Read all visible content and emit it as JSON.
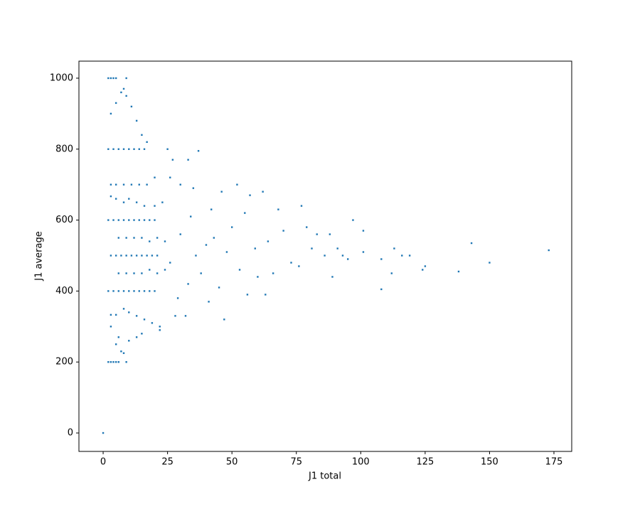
{
  "chart_data": {
    "type": "scatter",
    "xlabel": "J1 total",
    "ylabel": "J1 average",
    "color": "#1f77b4",
    "x": [
      0,
      2,
      3,
      4,
      5,
      6,
      9,
      2,
      4,
      6,
      8,
      10,
      12,
      14,
      16,
      18,
      20,
      2,
      4,
      6,
      8,
      10,
      12,
      14,
      16,
      18,
      20,
      2,
      4,
      6,
      8,
      10,
      12,
      14,
      16,
      2,
      3,
      4,
      5,
      9,
      3,
      5,
      7,
      8,
      6,
      10,
      13,
      15,
      3,
      5,
      7,
      8,
      9,
      11,
      13,
      15,
      17,
      3,
      5,
      7,
      9,
      11,
      13,
      15,
      17,
      19,
      21,
      3,
      5,
      8,
      11,
      14,
      17,
      20,
      3,
      5,
      8,
      10,
      13,
      16,
      19,
      22,
      22,
      3,
      5,
      8,
      10,
      13,
      16,
      20,
      23,
      6,
      9,
      12,
      15,
      18,
      21,
      24,
      6,
      9,
      12,
      15,
      18,
      21,
      24,
      25,
      27,
      33,
      37,
      26,
      30,
      35,
      28,
      32,
      29,
      33,
      26,
      30,
      34,
      36,
      38,
      40,
      41,
      42,
      43,
      45,
      46,
      47,
      48,
      50,
      52,
      53,
      55,
      56,
      57,
      59,
      60,
      62,
      63,
      64,
      66,
      68,
      70,
      73,
      76,
      77,
      79,
      81,
      83,
      86,
      88,
      89,
      91,
      93,
      95,
      97,
      101,
      101,
      108,
      108,
      112,
      113,
      116,
      119,
      124,
      125,
      138,
      143,
      150,
      173
    ],
    "values": [
      0,
      200,
      200,
      200,
      200,
      200,
      200,
      400,
      400,
      400,
      400,
      400,
      400,
      400,
      400,
      400,
      400,
      600,
      600,
      600,
      600,
      600,
      600,
      600,
      600,
      600,
      600,
      800,
      800,
      800,
      800,
      800,
      800,
      800,
      800,
      1000,
      1000,
      1000,
      1000,
      1000,
      300,
      250,
      230,
      225,
      270,
      260,
      270,
      280,
      900,
      930,
      960,
      970,
      950,
      920,
      880,
      840,
      820,
      500,
      500,
      500,
      500,
      500,
      500,
      500,
      500,
      500,
      500,
      700,
      700,
      700,
      700,
      700,
      700,
      720,
      333,
      333,
      350,
      340,
      330,
      320,
      310,
      300,
      290,
      667,
      660,
      650,
      660,
      650,
      640,
      640,
      650,
      450,
      450,
      450,
      450,
      460,
      450,
      460,
      550,
      550,
      550,
      550,
      540,
      550,
      540,
      800,
      770,
      770,
      795,
      720,
      700,
      690,
      330,
      330,
      380,
      420,
      480,
      560,
      610,
      500,
      450,
      530,
      370,
      630,
      550,
      410,
      680,
      320,
      510,
      580,
      700,
      460,
      620,
      390,
      670,
      520,
      440,
      680,
      390,
      540,
      450,
      630,
      570,
      480,
      470,
      640,
      580,
      520,
      560,
      500,
      560,
      440,
      520,
      500,
      490,
      600,
      510,
      570,
      405,
      490,
      450,
      520,
      500,
      500,
      460,
      470,
      455,
      535,
      480,
      515
    ],
    "xlim": [
      -9.4,
      181.9
    ],
    "ylim": [
      -52,
      1048
    ],
    "xticks": [
      0,
      25,
      50,
      75,
      100,
      125,
      150,
      175
    ],
    "yticks": [
      0,
      200,
      400,
      600,
      800,
      1000
    ]
  }
}
